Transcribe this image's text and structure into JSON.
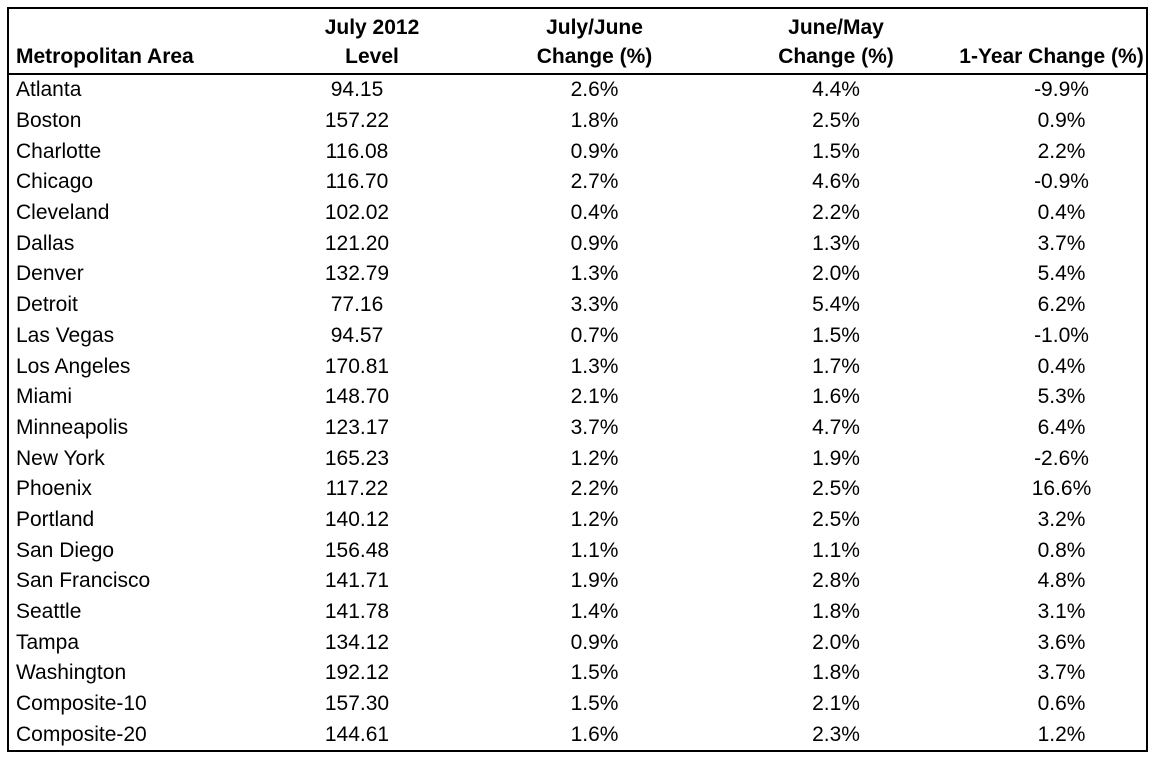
{
  "chart_data": {
    "type": "table",
    "columns": [
      {
        "lines": [
          "",
          "Metropolitan Area"
        ]
      },
      {
        "lines": [
          "July 2012",
          "Level"
        ]
      },
      {
        "lines": [
          "July/June",
          "Change (%)"
        ]
      },
      {
        "lines": [
          "June/May",
          "Change (%)"
        ]
      },
      {
        "lines": [
          "",
          "1-Year Change (%)"
        ]
      }
    ],
    "rows": [
      [
        "Atlanta",
        "94.15",
        "2.6%",
        "4.4%",
        "-9.9%"
      ],
      [
        "Boston",
        "157.22",
        "1.8%",
        "2.5%",
        "0.9%"
      ],
      [
        "Charlotte",
        "116.08",
        "0.9%",
        "1.5%",
        "2.2%"
      ],
      [
        "Chicago",
        "116.70",
        "2.7%",
        "4.6%",
        "-0.9%"
      ],
      [
        "Cleveland",
        "102.02",
        "0.4%",
        "2.2%",
        "0.4%"
      ],
      [
        "Dallas",
        "121.20",
        "0.9%",
        "1.3%",
        "3.7%"
      ],
      [
        "Denver",
        "132.79",
        "1.3%",
        "2.0%",
        "5.4%"
      ],
      [
        "Detroit",
        "77.16",
        "3.3%",
        "5.4%",
        "6.2%"
      ],
      [
        "Las Vegas",
        "94.57",
        "0.7%",
        "1.5%",
        "-1.0%"
      ],
      [
        "Los Angeles",
        "170.81",
        "1.3%",
        "1.7%",
        "0.4%"
      ],
      [
        "Miami",
        "148.70",
        "2.1%",
        "1.6%",
        "5.3%"
      ],
      [
        "Minneapolis",
        "123.17",
        "3.7%",
        "4.7%",
        "6.4%"
      ],
      [
        "New York",
        "165.23",
        "1.2%",
        "1.9%",
        "-2.6%"
      ],
      [
        "Phoenix",
        "117.22",
        "2.2%",
        "2.5%",
        "16.6%"
      ],
      [
        "Portland",
        "140.12",
        "1.2%",
        "2.5%",
        "3.2%"
      ],
      [
        "San Diego",
        "156.48",
        "1.1%",
        "1.1%",
        "0.8%"
      ],
      [
        "San Francisco",
        "141.71",
        "1.9%",
        "2.8%",
        "4.8%"
      ],
      [
        "Seattle",
        "141.78",
        "1.4%",
        "1.8%",
        "3.1%"
      ],
      [
        "Tampa",
        "134.12",
        "0.9%",
        "2.0%",
        "3.6%"
      ],
      [
        "Washington",
        "192.12",
        "1.5%",
        "1.8%",
        "3.7%"
      ],
      [
        "Composite-10",
        "157.30",
        "1.5%",
        "2.1%",
        "0.6%"
      ],
      [
        "Composite-20",
        "144.61",
        "1.6%",
        "2.3%",
        "1.2%"
      ]
    ]
  }
}
